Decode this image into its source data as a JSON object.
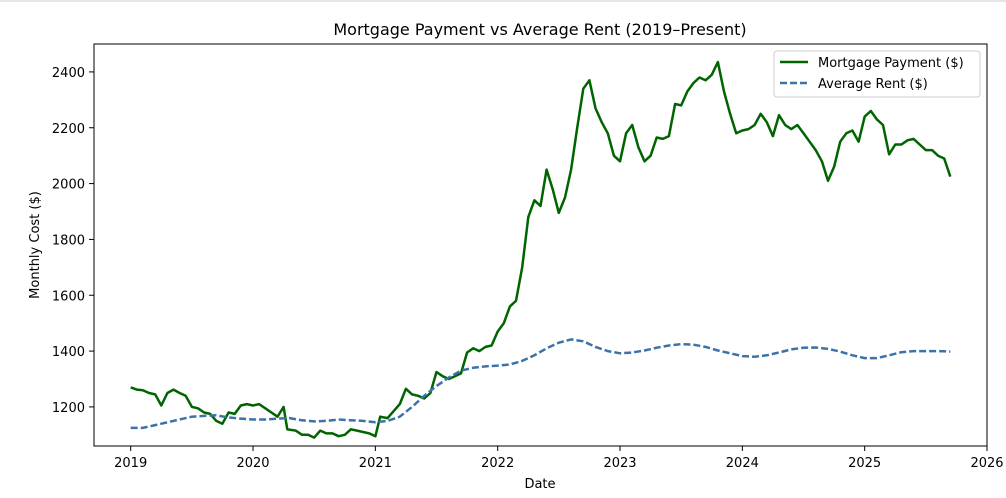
{
  "chart_data": {
    "type": "line",
    "title": "Mortgage Payment vs Average Rent (2019–Present)",
    "xlabel": "Date",
    "ylabel": "Monthly Cost ($)",
    "xlim": [
      2018.7,
      2026.0
    ],
    "ylim": [
      1060,
      2500
    ],
    "x_ticks": [
      2019,
      2020,
      2021,
      2022,
      2023,
      2024,
      2025,
      2026
    ],
    "y_ticks": [
      1200,
      1400,
      1600,
      1800,
      2000,
      2200,
      2400
    ],
    "grid": false,
    "legend_position": "top-right",
    "series": [
      {
        "name": "Mortgage Payment ($)",
        "color": "#006400",
        "style": "solid",
        "points": [
          [
            2019.0,
            1270
          ],
          [
            2019.05,
            1262
          ],
          [
            2019.1,
            1260
          ],
          [
            2019.15,
            1250
          ],
          [
            2019.2,
            1245
          ],
          [
            2019.25,
            1205
          ],
          [
            2019.3,
            1250
          ],
          [
            2019.35,
            1262
          ],
          [
            2019.4,
            1250
          ],
          [
            2019.45,
            1240
          ],
          [
            2019.5,
            1200
          ],
          [
            2019.55,
            1195
          ],
          [
            2019.6,
            1180
          ],
          [
            2019.65,
            1175
          ],
          [
            2019.7,
            1150
          ],
          [
            2019.75,
            1140
          ],
          [
            2019.8,
            1180
          ],
          [
            2019.85,
            1175
          ],
          [
            2019.9,
            1205
          ],
          [
            2019.95,
            1210
          ],
          [
            2020.0,
            1205
          ],
          [
            2020.05,
            1210
          ],
          [
            2020.1,
            1195
          ],
          [
            2020.15,
            1180
          ],
          [
            2020.2,
            1165
          ],
          [
            2020.25,
            1200
          ],
          [
            2020.28,
            1120
          ],
          [
            2020.35,
            1115
          ],
          [
            2020.4,
            1100
          ],
          [
            2020.45,
            1100
          ],
          [
            2020.5,
            1090
          ],
          [
            2020.55,
            1115
          ],
          [
            2020.6,
            1105
          ],
          [
            2020.65,
            1105
          ],
          [
            2020.7,
            1095
          ],
          [
            2020.75,
            1100
          ],
          [
            2020.8,
            1120
          ],
          [
            2020.85,
            1115
          ],
          [
            2020.9,
            1110
          ],
          [
            2020.95,
            1105
          ],
          [
            2021.0,
            1095
          ],
          [
            2021.04,
            1165
          ],
          [
            2021.1,
            1160
          ],
          [
            2021.15,
            1185
          ],
          [
            2021.2,
            1210
          ],
          [
            2021.25,
            1265
          ],
          [
            2021.3,
            1245
          ],
          [
            2021.35,
            1240
          ],
          [
            2021.4,
            1230
          ],
          [
            2021.45,
            1250
          ],
          [
            2021.5,
            1325
          ],
          [
            2021.55,
            1310
          ],
          [
            2021.6,
            1300
          ],
          [
            2021.65,
            1310
          ],
          [
            2021.7,
            1320
          ],
          [
            2021.75,
            1395
          ],
          [
            2021.8,
            1410
          ],
          [
            2021.85,
            1400
          ],
          [
            2021.9,
            1415
          ],
          [
            2021.95,
            1420
          ],
          [
            2022.0,
            1470
          ],
          [
            2022.05,
            1500
          ],
          [
            2022.1,
            1560
          ],
          [
            2022.15,
            1580
          ],
          [
            2022.2,
            1700
          ],
          [
            2022.25,
            1880
          ],
          [
            2022.3,
            1940
          ],
          [
            2022.35,
            1920
          ],
          [
            2022.4,
            2050
          ],
          [
            2022.45,
            1980
          ],
          [
            2022.5,
            1895
          ],
          [
            2022.55,
            1950
          ],
          [
            2022.6,
            2050
          ],
          [
            2022.65,
            2200
          ],
          [
            2022.7,
            2340
          ],
          [
            2022.75,
            2370
          ],
          [
            2022.8,
            2270
          ],
          [
            2022.85,
            2220
          ],
          [
            2022.9,
            2180
          ],
          [
            2022.95,
            2100
          ],
          [
            2023.0,
            2080
          ],
          [
            2023.05,
            2180
          ],
          [
            2023.1,
            2210
          ],
          [
            2023.15,
            2130
          ],
          [
            2023.2,
            2080
          ],
          [
            2023.25,
            2100
          ],
          [
            2023.3,
            2165
          ],
          [
            2023.35,
            2160
          ],
          [
            2023.4,
            2170
          ],
          [
            2023.45,
            2285
          ],
          [
            2023.5,
            2280
          ],
          [
            2023.55,
            2330
          ],
          [
            2023.6,
            2360
          ],
          [
            2023.65,
            2380
          ],
          [
            2023.7,
            2370
          ],
          [
            2023.75,
            2390
          ],
          [
            2023.8,
            2435
          ],
          [
            2023.85,
            2330
          ],
          [
            2023.9,
            2250
          ],
          [
            2023.95,
            2180
          ],
          [
            2024.0,
            2190
          ],
          [
            2024.05,
            2195
          ],
          [
            2024.1,
            2210
          ],
          [
            2024.15,
            2250
          ],
          [
            2024.2,
            2220
          ],
          [
            2024.25,
            2170
          ],
          [
            2024.3,
            2245
          ],
          [
            2024.35,
            2210
          ],
          [
            2024.4,
            2195
          ],
          [
            2024.45,
            2210
          ],
          [
            2024.5,
            2180
          ],
          [
            2024.55,
            2150
          ],
          [
            2024.6,
            2120
          ],
          [
            2024.65,
            2080
          ],
          [
            2024.7,
            2010
          ],
          [
            2024.75,
            2060
          ],
          [
            2024.8,
            2150
          ],
          [
            2024.85,
            2180
          ],
          [
            2024.9,
            2190
          ],
          [
            2024.95,
            2150
          ],
          [
            2025.0,
            2240
          ],
          [
            2025.05,
            2260
          ],
          [
            2025.1,
            2230
          ],
          [
            2025.15,
            2210
          ],
          [
            2025.2,
            2105
          ],
          [
            2025.25,
            2140
          ],
          [
            2025.3,
            2140
          ],
          [
            2025.35,
            2155
          ],
          [
            2025.4,
            2160
          ],
          [
            2025.45,
            2140
          ],
          [
            2025.5,
            2120
          ],
          [
            2025.55,
            2120
          ],
          [
            2025.6,
            2100
          ],
          [
            2025.65,
            2090
          ],
          [
            2025.7,
            2025
          ]
        ]
      },
      {
        "name": "Average Rent ($)",
        "color": "#3d72a8",
        "style": "dashed",
        "points": [
          [
            2019.0,
            1125
          ],
          [
            2019.1,
            1125
          ],
          [
            2019.2,
            1135
          ],
          [
            2019.3,
            1145
          ],
          [
            2019.4,
            1155
          ],
          [
            2019.5,
            1165
          ],
          [
            2019.6,
            1168
          ],
          [
            2019.7,
            1170
          ],
          [
            2019.8,
            1162
          ],
          [
            2019.9,
            1158
          ],
          [
            2020.0,
            1155
          ],
          [
            2020.1,
            1155
          ],
          [
            2020.2,
            1158
          ],
          [
            2020.3,
            1160
          ],
          [
            2020.4,
            1152
          ],
          [
            2020.5,
            1148
          ],
          [
            2020.6,
            1150
          ],
          [
            2020.7,
            1155
          ],
          [
            2020.8,
            1152
          ],
          [
            2020.9,
            1150
          ],
          [
            2021.0,
            1145
          ],
          [
            2021.1,
            1150
          ],
          [
            2021.2,
            1165
          ],
          [
            2021.3,
            1200
          ],
          [
            2021.4,
            1240
          ],
          [
            2021.5,
            1275
          ],
          [
            2021.6,
            1305
          ],
          [
            2021.7,
            1330
          ],
          [
            2021.8,
            1340
          ],
          [
            2021.9,
            1345
          ],
          [
            2022.0,
            1348
          ],
          [
            2022.1,
            1352
          ],
          [
            2022.2,
            1365
          ],
          [
            2022.3,
            1385
          ],
          [
            2022.4,
            1410
          ],
          [
            2022.5,
            1430
          ],
          [
            2022.6,
            1442
          ],
          [
            2022.7,
            1435
          ],
          [
            2022.8,
            1415
          ],
          [
            2022.9,
            1400
          ],
          [
            2023.0,
            1392
          ],
          [
            2023.1,
            1395
          ],
          [
            2023.2,
            1402
          ],
          [
            2023.3,
            1412
          ],
          [
            2023.4,
            1420
          ],
          [
            2023.5,
            1425
          ],
          [
            2023.6,
            1423
          ],
          [
            2023.7,
            1415
          ],
          [
            2023.8,
            1402
          ],
          [
            2023.9,
            1392
          ],
          [
            2024.0,
            1382
          ],
          [
            2024.1,
            1380
          ],
          [
            2024.2,
            1385
          ],
          [
            2024.3,
            1395
          ],
          [
            2024.4,
            1406
          ],
          [
            2024.5,
            1412
          ],
          [
            2024.6,
            1413
          ],
          [
            2024.7,
            1408
          ],
          [
            2024.8,
            1398
          ],
          [
            2024.9,
            1385
          ],
          [
            2025.0,
            1375
          ],
          [
            2025.1,
            1375
          ],
          [
            2025.2,
            1385
          ],
          [
            2025.3,
            1396
          ],
          [
            2025.4,
            1400
          ],
          [
            2025.5,
            1400
          ],
          [
            2025.6,
            1400
          ],
          [
            2025.7,
            1398
          ]
        ]
      }
    ]
  }
}
